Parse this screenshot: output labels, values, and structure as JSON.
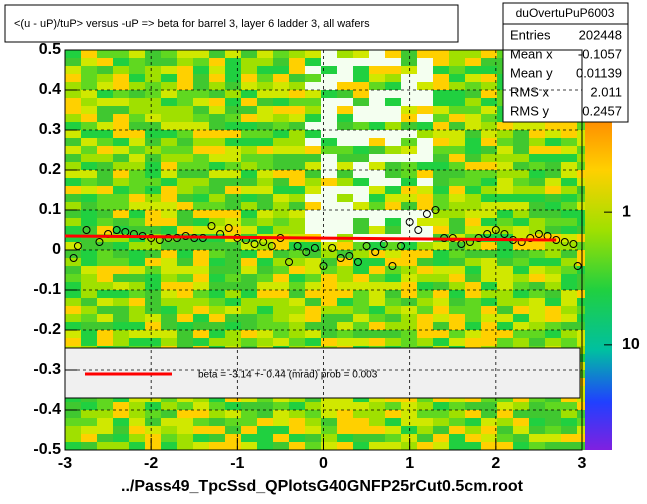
{
  "chart_data": {
    "type": "scatter",
    "title": "<(u - uP)/tuP> versus  -uP => beta for barrel 3, layer 6 ladder 3, all wafers",
    "x_label": "../Pass49_TpcSsd_QPlotsG40GNFP25rCut0.5cm.root",
    "xlim": [
      -3,
      3
    ],
    "ylim": [
      -0.5,
      0.5
    ],
    "xticks": [
      -3,
      -2,
      -1,
      0,
      1,
      2,
      3
    ],
    "yticks": [
      -0.5,
      -0.4,
      -0.3,
      -0.2,
      -0.1,
      0,
      0.1,
      0.2,
      0.3,
      0.4,
      0.5
    ],
    "grid": true,
    "series": [
      {
        "name": "profile",
        "color": "#000000",
        "x": [
          -2.9,
          -2.85,
          -2.75,
          -2.6,
          -2.5,
          -2.4,
          -2.3,
          -2.2,
          -2.1,
          -2.0,
          -1.9,
          -1.8,
          -1.7,
          -1.6,
          -1.5,
          -1.4,
          -1.3,
          -1.2,
          -1.1,
          -1.0,
          -0.9,
          -0.8,
          -0.7,
          -0.6,
          -0.5,
          -0.4,
          -0.3,
          -0.2,
          -0.1,
          0.0,
          0.1,
          0.2,
          0.3,
          0.4,
          0.5,
          0.6,
          0.7,
          0.8,
          0.9,
          1.0,
          1.1,
          1.2,
          1.3,
          1.4,
          1.5,
          1.6,
          1.7,
          1.8,
          1.9,
          2.0,
          2.1,
          2.2,
          2.3,
          2.4,
          2.5,
          2.6,
          2.7,
          2.8,
          2.9,
          2.95
        ],
        "values": [
          -0.02,
          0.01,
          0.05,
          0.02,
          0.04,
          0.05,
          0.045,
          0.04,
          0.035,
          0.03,
          0.025,
          0.03,
          0.03,
          0.035,
          0.03,
          0.03,
          0.06,
          0.04,
          0.055,
          0.03,
          0.025,
          0.015,
          0.02,
          0.01,
          0.03,
          -0.03,
          0.01,
          -0.005,
          0.005,
          -0.04,
          0.005,
          -0.02,
          -0.015,
          -0.03,
          0.01,
          -0.005,
          0.015,
          -0.04,
          0.01,
          0.07,
          0.05,
          0.09,
          0.1,
          0.03,
          0.03,
          0.015,
          0.02,
          0.03,
          0.04,
          0.05,
          0.04,
          0.025,
          0.02,
          0.03,
          0.04,
          0.035,
          0.025,
          0.02,
          0.015,
          -0.04
        ]
      },
      {
        "name": "fit",
        "color": "#ff0000",
        "x": [
          -3,
          2.7
        ],
        "values": [
          0.035,
          0.025
        ]
      }
    ],
    "fit_label": "beta =   -3.14 +-  0.44 (mrad) prob = 0.003",
    "stats": {
      "name": "duOvertuPuP6003",
      "rows": [
        [
          "Entries",
          "202448"
        ],
        [
          "Mean x",
          "-0.1057"
        ],
        [
          "Mean y",
          "0.01139"
        ],
        [
          "RMS x",
          "2.011"
        ],
        [
          "RMS y",
          "0.2457"
        ]
      ]
    },
    "zlog": true,
    "zlim": [
      0.06,
      62
    ],
    "zticks": [
      1,
      10
    ]
  }
}
